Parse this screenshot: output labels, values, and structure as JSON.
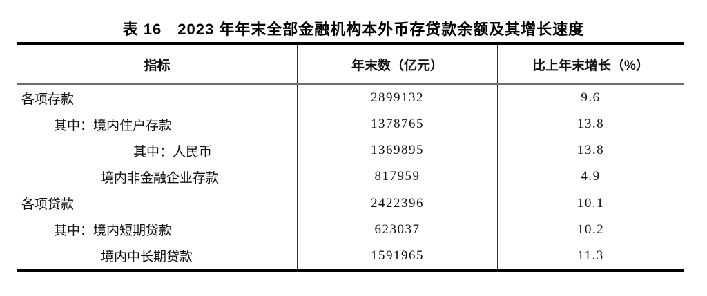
{
  "title": "表 16　2023 年年末全部金融机构本外币存贷款余额及其增长速度",
  "table": {
    "columns": [
      "指标",
      "年末数（亿元）",
      "比上年末增长（%）"
    ],
    "rows": [
      {
        "indicator": "各项存款",
        "indent": "0",
        "year_end": "2899132",
        "growth": "9.6"
      },
      {
        "indicator": "其中：境内住户存款",
        "indent": "1",
        "year_end": "1378765",
        "growth": "13.8"
      },
      {
        "indicator": "其中：人民币",
        "indent": "3",
        "year_end": "1369895",
        "growth": "13.8"
      },
      {
        "indicator": "境内非金融企业存款",
        "indent": "2",
        "year_end": "817959",
        "growth": "4.9"
      },
      {
        "indicator": "各项贷款",
        "indent": "0",
        "year_end": "2422396",
        "growth": "10.1"
      },
      {
        "indicator": "其中：境内短期贷款",
        "indent": "1",
        "year_end": "623037",
        "growth": "10.2"
      },
      {
        "indicator": "境内中长期贷款",
        "indent": "2",
        "year_end": "1591965",
        "growth": "11.3"
      }
    ]
  }
}
